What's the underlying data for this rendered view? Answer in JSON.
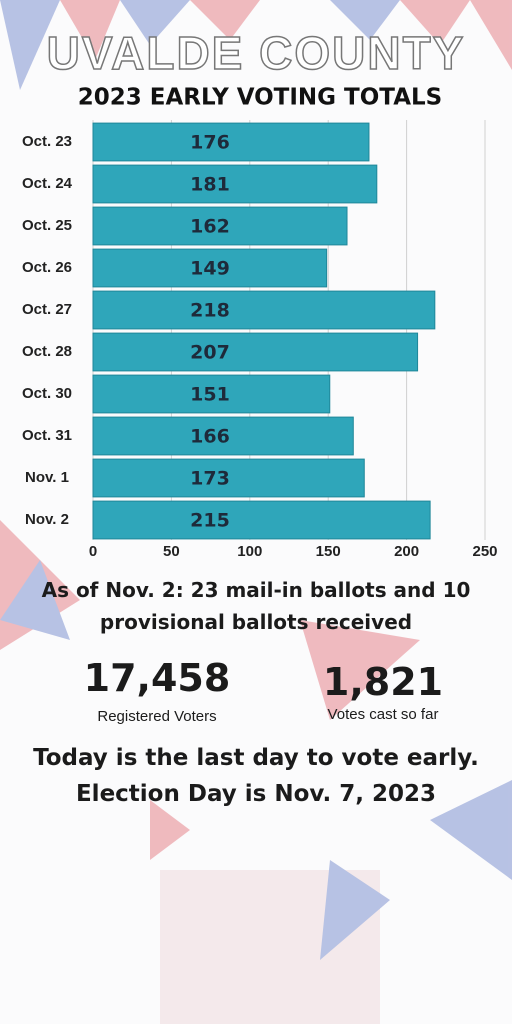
{
  "chart_data": {
    "type": "hbar",
    "title": "UVALDE COUNTY",
    "subtitle": "2023 EARLY VOTING TOTALS",
    "categories": [
      "Oct. 23",
      "Oct. 24",
      "Oct. 25",
      "Oct. 26",
      "Oct. 27",
      "Oct. 28",
      "Oct. 30",
      "Oct. 31",
      "Nov. 1",
      "Nov. 2"
    ],
    "values": [
      176,
      181,
      162,
      149,
      218,
      207,
      151,
      166,
      173,
      215
    ],
    "color": "#2fa6ba",
    "xlim": [
      0,
      250
    ],
    "xticks": [
      0,
      50,
      100,
      150,
      200,
      250
    ],
    "grid": true
  },
  "note": "As of Nov. 2: 23 mail-in ballots and 10 provisional ballots received",
  "stats": [
    {
      "number": "17,458",
      "label": "Registered Voters"
    },
    {
      "number": "1,821",
      "label": "Votes cast so far"
    }
  ],
  "footer": "Today is the last day to vote early. Election Day is Nov. 7, 2023"
}
